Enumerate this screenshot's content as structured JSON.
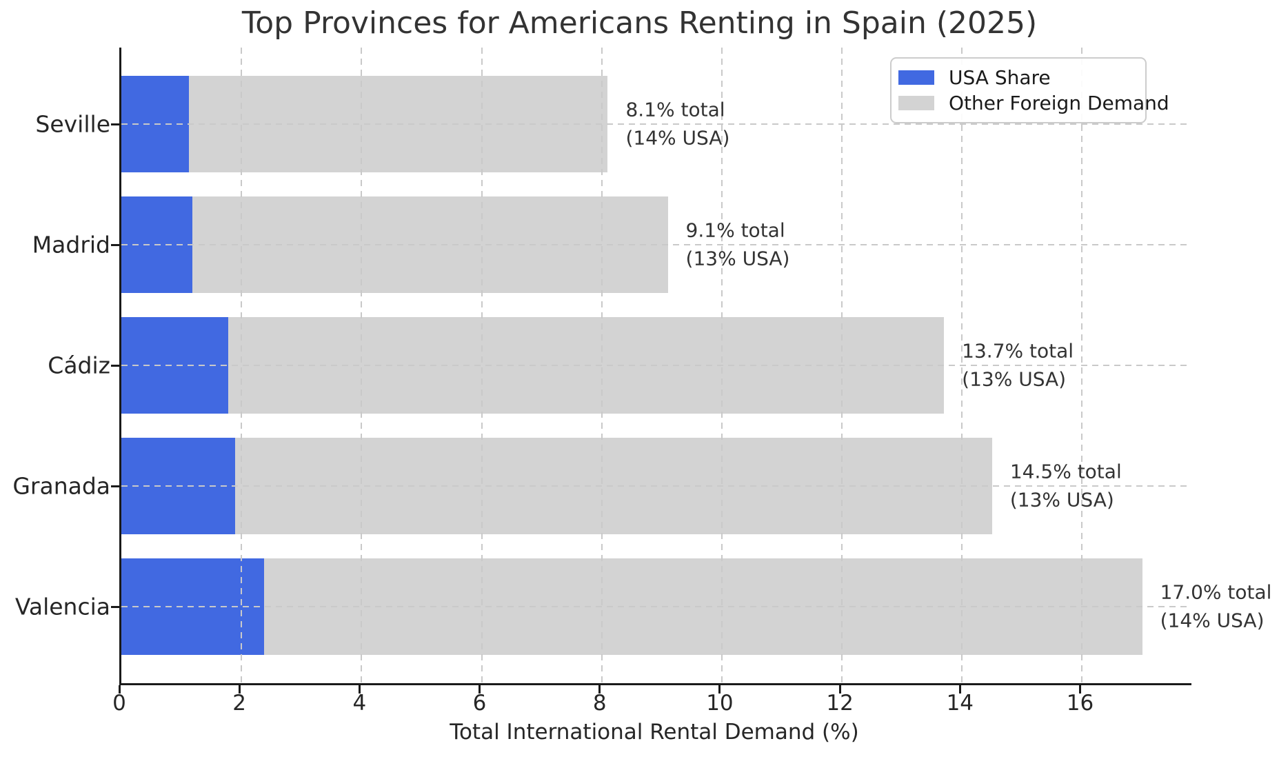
{
  "chart_data": {
    "type": "bar",
    "orientation": "horizontal",
    "stacked": true,
    "title": "Top Provinces for Americans Renting in Spain (2025)",
    "xlabel": "Total International Rental Demand (%)",
    "ylabel": "",
    "categories": [
      "Seville",
      "Madrid",
      "Cádiz",
      "Granada",
      "Valencia"
    ],
    "series": [
      {
        "name": "USA Share",
        "color": "#4169E1",
        "values": [
          1.13,
          1.18,
          1.78,
          1.89,
          2.38
        ]
      },
      {
        "name": "Other Foreign Demand",
        "color": "#D3D3D3",
        "values": [
          6.97,
          7.92,
          11.92,
          12.61,
          14.62
        ]
      }
    ],
    "totals": [
      8.1,
      9.1,
      13.7,
      14.5,
      17.0
    ],
    "usa_share_pct": [
      14,
      13,
      13,
      13,
      14
    ],
    "annotations": [
      {
        "line1": "8.1% total",
        "line2": "(14% USA)"
      },
      {
        "line1": "9.1% total",
        "line2": "(13% USA)"
      },
      {
        "line1": "13.7% total",
        "line2": "(13% USA)"
      },
      {
        "line1": "14.5% total",
        "line2": "(13% USA)"
      },
      {
        "line1": "17.0% total",
        "line2": "(14% USA)"
      }
    ],
    "xlim": [
      0,
      17.82
    ],
    "xticks": [
      0,
      2,
      4,
      6,
      8,
      10,
      12,
      14,
      16
    ],
    "grid": "dashed",
    "legend_position": "upper-right",
    "colors": {
      "usa": "#4169E1",
      "other": "#D3D3D3",
      "grid": "#C9C9C9",
      "spine": "#1A1A1A",
      "text": "#262626",
      "title": "#333333"
    }
  }
}
